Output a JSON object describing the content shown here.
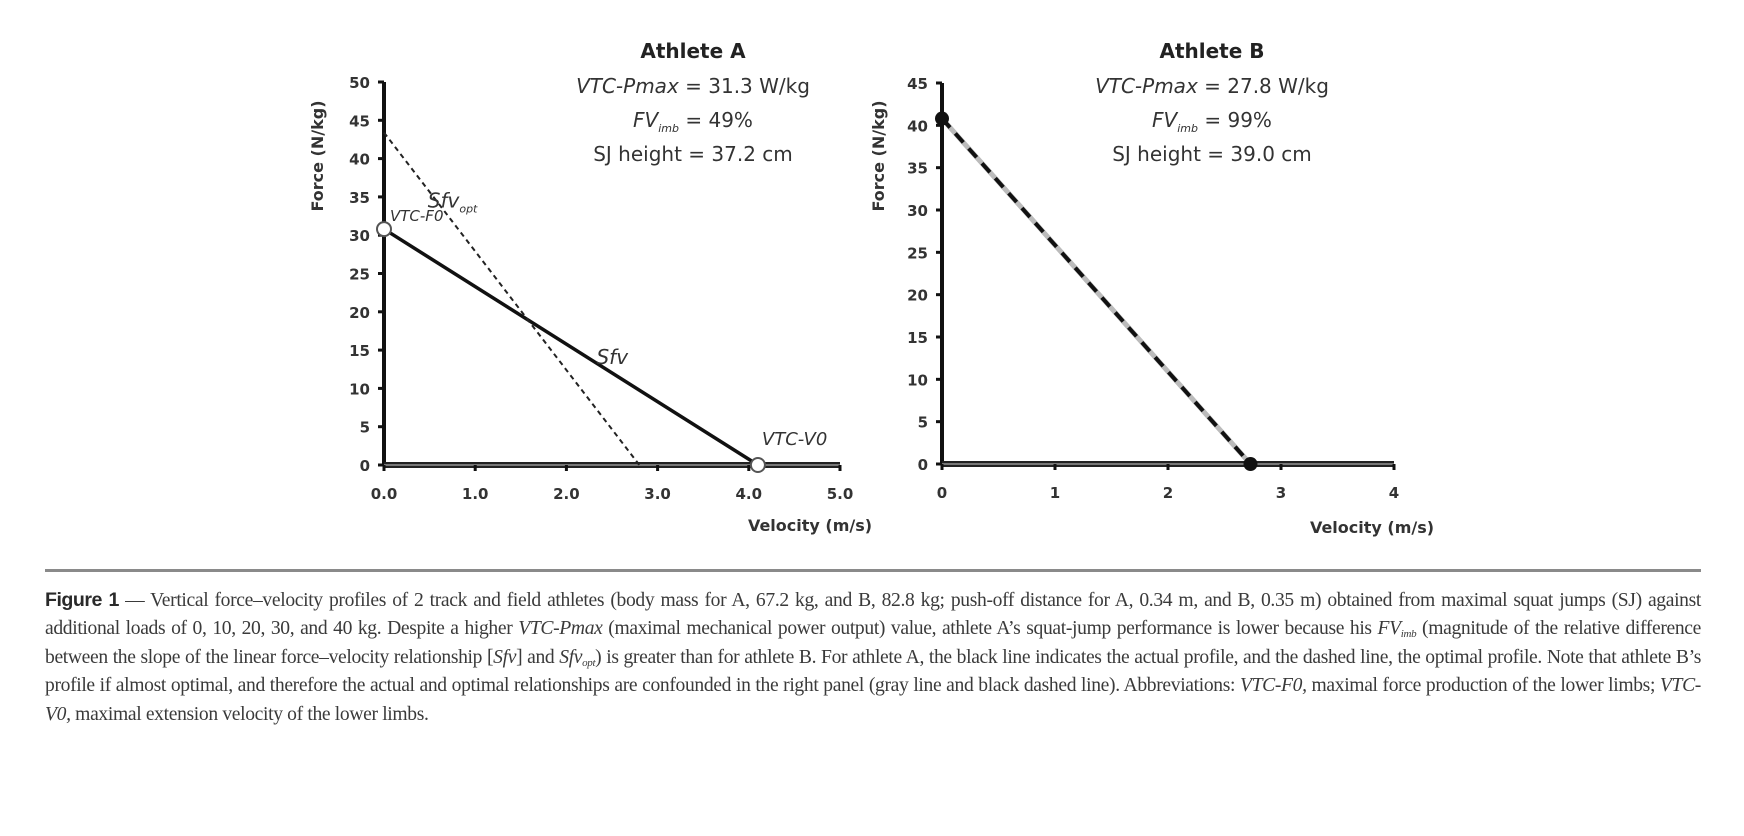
{
  "chart_data": [
    {
      "type": "line",
      "panel": "left",
      "title": "Athlete A",
      "annotations": {
        "pmax_label": "VTC-Pmax",
        "pmax_value": " = 31.3 W/kg",
        "fvimb_label": "FV",
        "fvimb_sub": "imb",
        "fvimb_value": " = 49%",
        "sj_height": "SJ height = 37.2 cm"
      },
      "xlabel": "Velocity (m/s)",
      "ylabel": "Force (N/kg)",
      "xlim": [
        0,
        5
      ],
      "ylim": [
        0,
        50
      ],
      "xticks": [
        0,
        1,
        2,
        3,
        4,
        5
      ],
      "xtick_labels": [
        "0.0",
        "1.0",
        "2.0",
        "3.0",
        "4.0",
        "5.0"
      ],
      "yticks": [
        0,
        5,
        10,
        15,
        20,
        25,
        30,
        35,
        40,
        45,
        50
      ],
      "ytick_labels": [
        "0",
        "5",
        "10",
        "15",
        "20",
        "25",
        "30",
        "35",
        "40",
        "45",
        "50"
      ],
      "grid": false,
      "series": [
        {
          "name": "Sfv",
          "style": "solid-black",
          "x": [
            0,
            4.1
          ],
          "y": [
            30.8,
            0
          ],
          "label": "Sfv",
          "label_sub": ""
        },
        {
          "name": "Sfv_opt",
          "style": "dashed-black-thin",
          "x": [
            0,
            2.8
          ],
          "y": [
            43.4,
            0
          ],
          "label": "Sfv",
          "label_sub": "opt"
        }
      ],
      "points": [
        {
          "name": "VTC-F0",
          "x": 0,
          "y": 30.8,
          "marker": "open-circle",
          "label": "VTC-F0"
        },
        {
          "name": "VTC-V0",
          "x": 4.1,
          "y": 0,
          "marker": "open-circle",
          "label": "VTC-V0"
        }
      ]
    },
    {
      "type": "line",
      "panel": "right",
      "title": "Athlete B",
      "annotations": {
        "pmax_label": "VTC-Pmax",
        "pmax_value": " = 27.8 W/kg",
        "fvimb_label": "FV",
        "fvimb_sub": "imb",
        "fvimb_value": " = 99%",
        "sj_height": "SJ height = 39.0 cm"
      },
      "xlabel": "Velocity (m/s)",
      "ylabel": "Force (N/kg)",
      "xlim": [
        0,
        4
      ],
      "ylim": [
        0,
        45
      ],
      "xticks": [
        0,
        1,
        2,
        3,
        4
      ],
      "xtick_labels": [
        "0",
        "1",
        "2",
        "3",
        "4"
      ],
      "yticks": [
        0,
        5,
        10,
        15,
        20,
        25,
        30,
        35,
        40,
        45
      ],
      "ytick_labels": [
        "0",
        "5",
        "10",
        "15",
        "20",
        "25",
        "30",
        "35",
        "40",
        "45"
      ],
      "grid": false,
      "series": [
        {
          "name": "Sfv",
          "style": "solid-gray",
          "x": [
            0,
            2.73
          ],
          "y": [
            40.8,
            0
          ]
        },
        {
          "name": "Sfv_opt",
          "style": "dashed-black-thick",
          "x": [
            0,
            2.73
          ],
          "y": [
            40.8,
            0
          ]
        }
      ],
      "points": [
        {
          "name": "VTC-F0",
          "x": 0,
          "y": 40.8,
          "marker": "filled-circle",
          "label": ""
        },
        {
          "name": "VTC-V0",
          "x": 2.73,
          "y": 0,
          "marker": "filled-circle",
          "label": ""
        }
      ]
    }
  ],
  "caption": {
    "figure_label": "Figure 1",
    "text_1": " — Vertical force–velocity profiles of 2 track and field athletes (body mass for A, 67.2 kg, and B, 82.8 kg; push-off distance for A, 0.34 m, and B, 0.35 m) obtained from maximal squat jumps (SJ) against additional loads of 0, 10, 20, 30, and 40 kg. Despite a higher ",
    "italic_1": "VTC-Pmax",
    "text_2": " (maximal mechanical power output) value, athlete A’s squat-jump performance is lower because his ",
    "italic_2": "FV",
    "sub_2": "imb",
    "text_3": " (magnitude of the relative difference between the slope of the linear force–velocity relationship [",
    "italic_3": "Sfv",
    "text_4": "] and ",
    "italic_4": "Sfv",
    "sub_4": "opt",
    "text_5": ") is greater than for athlete B. For athlete A, the black line indicates the actual profile, and the dashed line, the optimal profile. Note that athlete B’s profile if almost optimal, and therefore the actual and optimal relationships are confounded in the right panel (gray line and black dashed line). Abbreviations: ",
    "italic_5": "VTC-F0,",
    "text_6": " maximal force production of the lower limbs; ",
    "italic_6": "VTC-V0,",
    "text_7": " maximal extension velocity of the lower limbs."
  }
}
